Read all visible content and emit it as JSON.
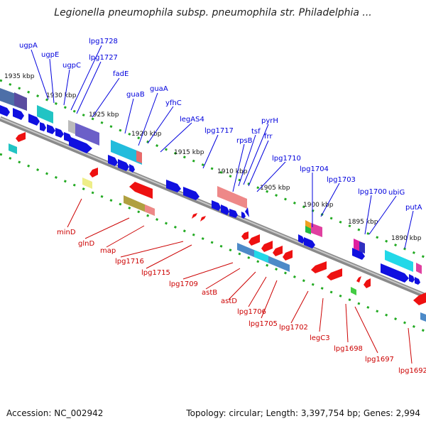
{
  "title": "Legionella pneumophila subsp. pneumophila str. Philadelphia ...",
  "footer": {
    "accession": "Accession: NC_002942",
    "info": "Topology: circular; Length: 3,397,754 bp; Genes: 2,994"
  },
  "colors": {
    "label_plus": "#0000dd",
    "label_minus": "#cc0000",
    "backbone": "#888888",
    "tick": "#22aa22"
  },
  "kbp_ticks": [
    "1935 kbp",
    "1930 kbp",
    "1925 kbp",
    "1920 kbp",
    "1915 kbp",
    "1910 kbp",
    "1905 kbp",
    "1900 kbp",
    "1895 kbp",
    "1890 kbp"
  ],
  "genes_plus": [
    "ugpA",
    "ugpE",
    "ugpC",
    "lpg1728",
    "lpg1727",
    "fadE",
    "guaB",
    "guaA",
    "yfhC",
    "legAS4",
    "lpg1717",
    "rpsB",
    "tsf",
    "pyrH",
    "frr",
    "lpg1710",
    "lpg1704",
    "lpg1703",
    "lpg1700",
    "ubiG",
    "putA"
  ],
  "genes_minus": [
    "minD",
    "glnD",
    "map",
    "lpg1716",
    "lpg1715",
    "lpg1709",
    "astB",
    "astD",
    "lpg1706",
    "lpg1705",
    "lpg1702",
    "legC3",
    "lpg1698",
    "lpg1697",
    "lpg1692"
  ]
}
